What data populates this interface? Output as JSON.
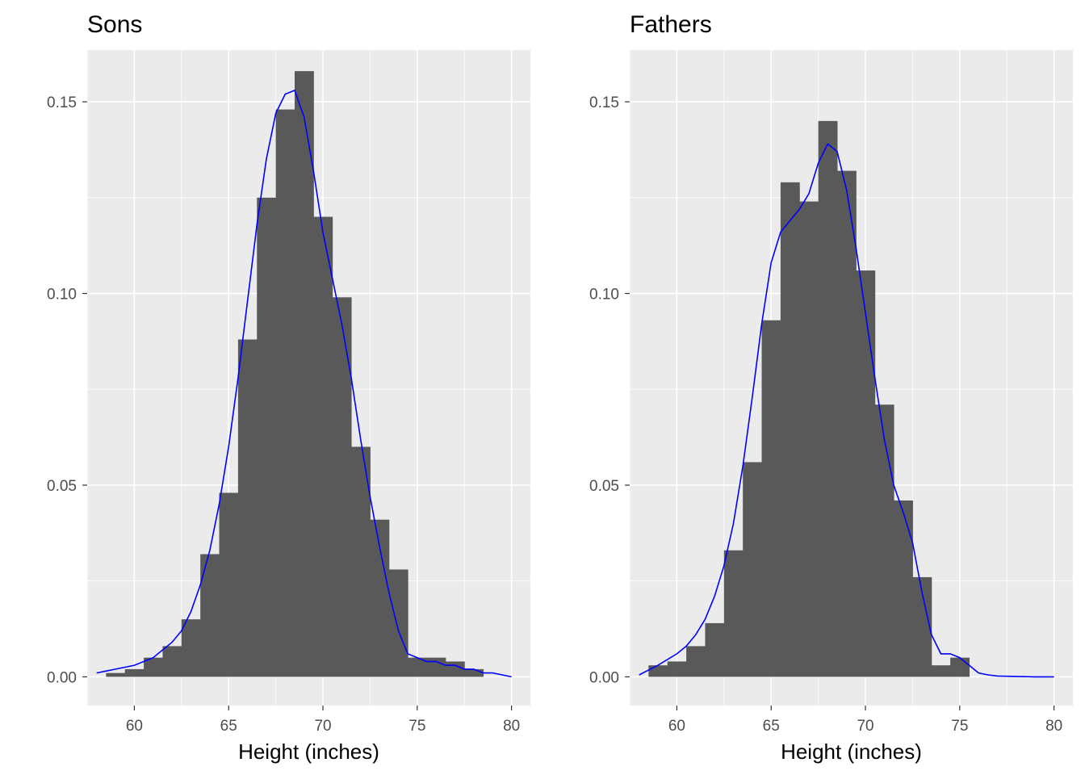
{
  "chart_data": [
    {
      "type": "bar",
      "title": "Sons",
      "xlabel": "Height (inches)",
      "ylabel": "",
      "xlim": [
        57.5,
        81.0
      ],
      "ylim": [
        -0.0075,
        0.1635
      ],
      "x_ticks": [
        "60",
        "65",
        "70",
        "75",
        "80"
      ],
      "x_tick_values": [
        60,
        65,
        70,
        75,
        80
      ],
      "y_ticks": [
        "0.00",
        "0.05",
        "0.10",
        "0.15"
      ],
      "y_tick_values": [
        0.0,
        0.05,
        0.1,
        0.15
      ],
      "grid": true,
      "bin_edges": [
        58.5,
        59.5,
        60.5,
        61.5,
        62.5,
        63.5,
        64.5,
        65.5,
        66.5,
        67.5,
        68.5,
        69.5,
        70.5,
        71.5,
        72.5,
        73.5,
        74.5,
        75.5,
        76.5,
        77.5,
        78.5
      ],
      "values": [
        0.001,
        0.002,
        0.005,
        0.008,
        0.015,
        0.032,
        0.048,
        0.088,
        0.125,
        0.148,
        0.158,
        0.12,
        0.099,
        0.06,
        0.041,
        0.028,
        0.005,
        0.005,
        0.004,
        0.002
      ],
      "bar_color": "#595959",
      "density_color": "#0000ff",
      "density": {
        "x": [
          58,
          59,
          60,
          60.5,
          61,
          61.5,
          62,
          62.5,
          63,
          63.5,
          64,
          64.5,
          65,
          65.5,
          66,
          66.5,
          67,
          67.5,
          68,
          68.5,
          69,
          69.5,
          70,
          70.5,
          71,
          71.5,
          72,
          72.5,
          73,
          73.5,
          74,
          74.5,
          75,
          75.5,
          76,
          76.5,
          77,
          77.5,
          78,
          78.5,
          79,
          80
        ],
        "y": [
          0.001,
          0.002,
          0.003,
          0.004,
          0.005,
          0.007,
          0.009,
          0.012,
          0.017,
          0.024,
          0.033,
          0.045,
          0.06,
          0.078,
          0.098,
          0.118,
          0.135,
          0.147,
          0.152,
          0.153,
          0.146,
          0.132,
          0.116,
          0.104,
          0.092,
          0.078,
          0.062,
          0.047,
          0.034,
          0.022,
          0.012,
          0.006,
          0.005,
          0.004,
          0.004,
          0.003,
          0.003,
          0.002,
          0.002,
          0.001,
          0.001,
          0.0
        ]
      }
    },
    {
      "type": "bar",
      "title": "Fathers",
      "xlabel": "Height (inches)",
      "ylabel": "",
      "xlim": [
        57.5,
        81.0
      ],
      "ylim": [
        -0.0075,
        0.1635
      ],
      "x_ticks": [
        "60",
        "65",
        "70",
        "75",
        "80"
      ],
      "x_tick_values": [
        60,
        65,
        70,
        75,
        80
      ],
      "y_ticks": [
        "0.00",
        "0.05",
        "0.10",
        "0.15"
      ],
      "y_tick_values": [
        0.0,
        0.05,
        0.1,
        0.15
      ],
      "grid": true,
      "bin_edges": [
        58.5,
        59.5,
        60.5,
        61.5,
        62.5,
        63.5,
        64.5,
        65.5,
        66.5,
        67.5,
        68.5,
        69.5,
        70.5,
        71.5,
        72.5,
        73.5,
        74.5,
        75.5
      ],
      "values": [
        0.003,
        0.004,
        0.008,
        0.014,
        0.033,
        0.056,
        0.093,
        0.129,
        0.124,
        0.145,
        0.132,
        0.106,
        0.071,
        0.046,
        0.026,
        0.003,
        0.005
      ],
      "bar_color": "#595959",
      "density_color": "#0000ff",
      "density": {
        "x": [
          58,
          59,
          60,
          60.5,
          61,
          61.5,
          62,
          62.5,
          63,
          63.5,
          64,
          64.5,
          65,
          65.5,
          66,
          66.5,
          67,
          67.5,
          68,
          68.5,
          69,
          69.5,
          70,
          70.5,
          71,
          71.5,
          72,
          72.5,
          73,
          73.5,
          74,
          74.5,
          75,
          75.5,
          76,
          76.5,
          77,
          78,
          79,
          80
        ],
        "y": [
          0.0005,
          0.003,
          0.006,
          0.008,
          0.011,
          0.015,
          0.021,
          0.029,
          0.04,
          0.055,
          0.073,
          0.092,
          0.108,
          0.116,
          0.119,
          0.122,
          0.126,
          0.134,
          0.139,
          0.137,
          0.127,
          0.112,
          0.095,
          0.078,
          0.062,
          0.05,
          0.043,
          0.035,
          0.022,
          0.011,
          0.006,
          0.006,
          0.005,
          0.003,
          0.001,
          0.0005,
          0.0002,
          0.0001,
          0.0,
          0.0
        ]
      }
    }
  ]
}
